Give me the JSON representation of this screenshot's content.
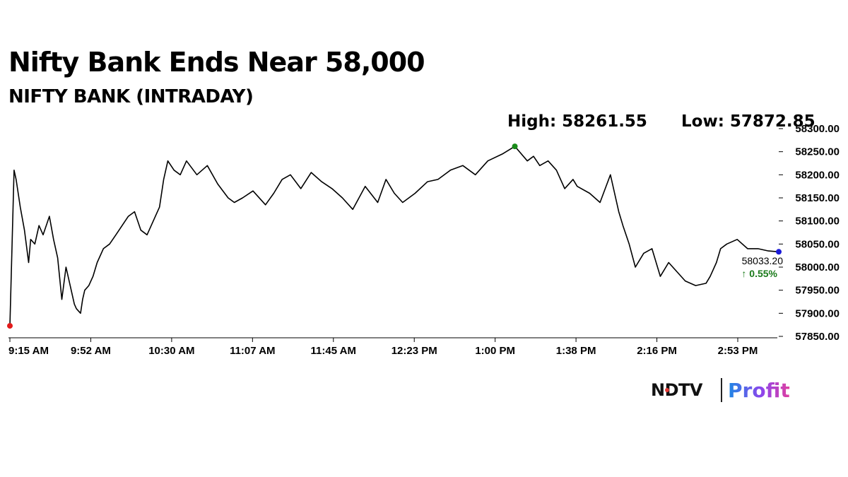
{
  "headline": "Nifty Bank Ends Near 58,000",
  "subtitle": "NIFTY BANK (INTRADAY)",
  "high_label": "High: 58261.55",
  "low_label": "Low: 57872.85",
  "logo": {
    "ndtv": "NDTV",
    "profit": "Profit"
  },
  "colors": {
    "line": "#000000",
    "high_marker": "#1a8c1a",
    "low_marker": "#e31b1b",
    "last_marker": "#1a1ad9",
    "change_text": "#1a7a1a"
  },
  "chart_data": {
    "type": "line",
    "title": "Nifty Bank Ends Near 58,000",
    "subtitle": "NIFTY BANK (INTRADAY)",
    "xlabel": "",
    "ylabel": "",
    "x_tick_labels": [
      "9:15 AM",
      "9:52 AM",
      "10:30 AM",
      "11:07 AM",
      "11:45 AM",
      "12:23 PM",
      "1:00 PM",
      "1:38 PM",
      "2:16 PM",
      "2:53 PM"
    ],
    "y_tick_labels": [
      "58300.00",
      "58250.00",
      "58200.00",
      "58150.00",
      "58100.00",
      "58050.00",
      "58000.00",
      "57950.00",
      "57900.00",
      "57850.00"
    ],
    "ylim": [
      57850,
      58300
    ],
    "x_minutes_range": [
      0,
      370
    ],
    "grid": false,
    "high": 58261.55,
    "low": 57872.85,
    "last": 58033.2,
    "last_label": "58033.20",
    "change_label": "↑ 0.55%",
    "series": [
      {
        "x": [
          "9:15",
          "9:17",
          "9:18",
          "9:20",
          "9:22",
          "9:24",
          "9:25",
          "9:27",
          "9:29",
          "9:31",
          "9:34",
          "9:36",
          "9:38",
          "9:40",
          "9:42",
          "9:44",
          "9:46",
          "9:47",
          "9:49",
          "9:50",
          "9:51",
          "9:53",
          "9:55",
          "9:57",
          "10:00",
          "10:03",
          "10:06",
          "10:09",
          "10:12",
          "10:15",
          "10:18",
          "10:21",
          "10:24",
          "10:27",
          "10:29",
          "10:31",
          "10:34",
          "10:37",
          "10:40",
          "10:45",
          "10:50",
          "10:55",
          "11:00",
          "11:03",
          "11:07",
          "11:12",
          "11:18",
          "11:22",
          "11:26",
          "11:30",
          "11:35",
          "11:40",
          "11:45",
          "11:50",
          "11:55",
          "12:00",
          "12:06",
          "12:12",
          "12:16",
          "12:20",
          "12:24",
          "12:30",
          "12:36",
          "12:41",
          "12:47",
          "12:53",
          "12:59",
          "13:05",
          "13:12",
          "13:18",
          "13:24",
          "13:27",
          "13:30",
          "13:34",
          "13:38",
          "13:42",
          "13:46",
          "13:48",
          "13:54",
          "13:59",
          "14:04",
          "14:08",
          "14:10",
          "14:13",
          "14:16",
          "14:20",
          "14:24",
          "14:28",
          "14:32",
          "14:36",
          "14:40",
          "14:45",
          "14:50",
          "14:52",
          "14:55",
          "14:57",
          "15:00",
          "15:05",
          "15:10",
          "15:15",
          "15:20",
          "15:25"
        ],
        "y": [
          57872.85,
          58210,
          58190,
          58130,
          58080,
          58010,
          58060,
          58050,
          58090,
          58070,
          58110,
          58060,
          58020,
          57930,
          58000,
          57960,
          57920,
          57910,
          57900,
          57930,
          57950,
          57960,
          57980,
          58010,
          58040,
          58050,
          58070,
          58090,
          58110,
          58120,
          58080,
          58070,
          58100,
          58130,
          58190,
          58230,
          58210,
          58200,
          58230,
          58200,
          58220,
          58180,
          58150,
          58140,
          58150,
          58165,
          58135,
          58160,
          58190,
          58200,
          58170,
          58205,
          58185,
          58170,
          58150,
          58125,
          58175,
          58140,
          58190,
          58160,
          58140,
          58160,
          58185,
          58190,
          58210,
          58220,
          58200,
          58230,
          58245,
          58261.55,
          58230,
          58240,
          58220,
          58230,
          58210,
          58170,
          58190,
          58175,
          58160,
          58140,
          58200,
          58120,
          58090,
          58050,
          58000,
          58030,
          58040,
          57980,
          58010,
          57990,
          57970,
          57960,
          57965,
          57980,
          58010,
          58040,
          58050,
          58060,
          58040,
          58040,
          58035,
          58033.2
        ]
      }
    ]
  }
}
